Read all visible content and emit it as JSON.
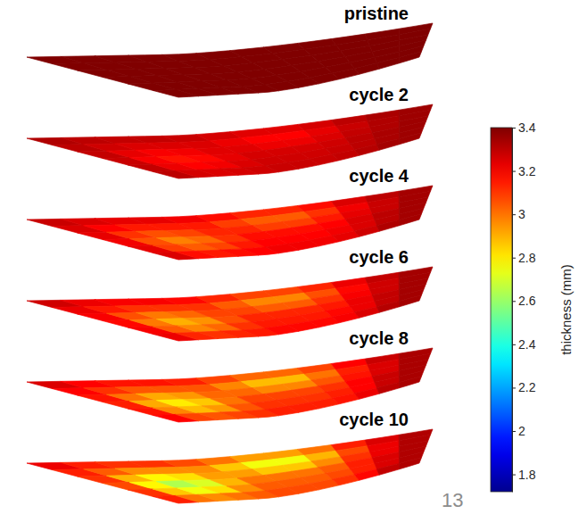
{
  "chart_data": {
    "type": "surface",
    "panels": [
      {
        "title": "pristine",
        "values": [
          [
            3.4,
            3.4,
            3.4,
            3.4,
            3.4,
            3.4,
            3.4,
            3.4,
            3.4,
            3.4,
            3.4,
            3.4
          ],
          [
            3.4,
            3.4,
            3.4,
            3.4,
            3.4,
            3.4,
            3.4,
            3.4,
            3.4,
            3.4,
            3.4,
            3.4
          ],
          [
            3.4,
            3.4,
            3.4,
            3.4,
            3.4,
            3.4,
            3.4,
            3.4,
            3.4,
            3.4,
            3.4,
            3.4
          ],
          [
            3.4,
            3.4,
            3.4,
            3.4,
            3.4,
            3.4,
            3.4,
            3.4,
            3.4,
            3.4,
            3.4,
            3.4
          ],
          [
            3.4,
            3.4,
            3.4,
            3.4,
            3.4,
            3.4,
            3.4,
            3.4,
            3.4,
            3.4,
            3.4,
            3.4
          ],
          [
            3.4,
            3.4,
            3.4,
            3.4,
            3.4,
            3.4,
            3.4,
            3.4,
            3.4,
            3.4,
            3.4,
            3.4
          ]
        ]
      },
      {
        "title": "cycle 2",
        "values": [
          [
            3.32,
            3.3,
            3.29,
            3.29,
            3.28,
            3.26,
            3.24,
            3.24,
            3.26,
            3.3,
            3.33,
            3.35
          ],
          [
            3.3,
            3.27,
            3.25,
            3.25,
            3.25,
            3.22,
            3.19,
            3.19,
            3.23,
            3.28,
            3.32,
            3.35
          ],
          [
            3.29,
            3.23,
            3.2,
            3.21,
            3.24,
            3.24,
            3.22,
            3.22,
            3.25,
            3.29,
            3.32,
            3.35
          ],
          [
            3.28,
            3.2,
            3.16,
            3.18,
            3.23,
            3.26,
            3.26,
            3.26,
            3.27,
            3.3,
            3.33,
            3.35
          ],
          [
            3.29,
            3.22,
            3.19,
            3.21,
            3.25,
            3.27,
            3.27,
            3.27,
            3.28,
            3.3,
            3.33,
            3.35
          ],
          [
            3.3,
            3.26,
            3.25,
            3.26,
            3.27,
            3.28,
            3.28,
            3.28,
            3.29,
            3.31,
            3.34,
            3.35
          ]
        ]
      },
      {
        "title": "cycle 4",
        "values": [
          [
            3.28,
            3.25,
            3.23,
            3.23,
            3.21,
            3.17,
            3.13,
            3.13,
            3.17,
            3.25,
            3.3,
            3.34
          ],
          [
            3.25,
            3.19,
            3.15,
            3.15,
            3.15,
            3.09,
            3.04,
            3.04,
            3.11,
            3.21,
            3.28,
            3.34
          ],
          [
            3.23,
            3.11,
            3.06,
            3.08,
            3.13,
            3.13,
            3.09,
            3.09,
            3.15,
            3.23,
            3.28,
            3.34
          ],
          [
            3.21,
            3.06,
            2.98,
            3.02,
            3.11,
            3.17,
            3.17,
            3.17,
            3.19,
            3.25,
            3.3,
            3.34
          ],
          [
            3.23,
            3.09,
            3.04,
            3.08,
            3.15,
            3.19,
            3.19,
            3.19,
            3.21,
            3.25,
            3.3,
            3.34
          ],
          [
            3.25,
            3.17,
            3.15,
            3.17,
            3.19,
            3.21,
            3.21,
            3.21,
            3.23,
            3.27,
            3.32,
            3.34
          ]
        ]
      },
      {
        "title": "cycle 6",
        "values": [
          [
            3.27,
            3.22,
            3.2,
            3.2,
            3.18,
            3.13,
            3.08,
            3.08,
            3.13,
            3.22,
            3.29,
            3.34
          ],
          [
            3.22,
            3.15,
            3.11,
            3.11,
            3.11,
            3.04,
            2.97,
            2.97,
            3.06,
            3.18,
            3.27,
            3.34
          ],
          [
            3.2,
            3.06,
            2.99,
            3.02,
            3.08,
            3.08,
            3.04,
            3.04,
            3.11,
            3.2,
            3.27,
            3.34
          ],
          [
            3.18,
            2.99,
            2.9,
            2.95,
            3.06,
            3.13,
            3.13,
            3.13,
            3.15,
            3.22,
            3.29,
            3.34
          ],
          [
            3.2,
            3.04,
            2.97,
            3.02,
            3.11,
            3.15,
            3.15,
            3.15,
            3.18,
            3.22,
            3.29,
            3.34
          ],
          [
            3.22,
            3.13,
            3.11,
            3.13,
            3.15,
            3.18,
            3.18,
            3.18,
            3.2,
            3.25,
            3.31,
            3.34
          ]
        ]
      },
      {
        "title": "cycle 8",
        "values": [
          [
            3.25,
            3.19,
            3.16,
            3.16,
            3.14,
            3.08,
            3.02,
            3.02,
            3.08,
            3.19,
            3.28,
            3.33
          ],
          [
            3.19,
            3.11,
            3.05,
            3.05,
            3.05,
            2.97,
            2.88,
            2.88,
            3.0,
            3.14,
            3.25,
            3.33
          ],
          [
            3.16,
            3.0,
            2.91,
            2.94,
            3.02,
            3.02,
            2.97,
            2.97,
            3.05,
            3.16,
            3.25,
            3.33
          ],
          [
            3.14,
            2.91,
            2.8,
            2.86,
            3.0,
            3.08,
            3.08,
            3.08,
            3.11,
            3.19,
            3.28,
            3.33
          ],
          [
            3.16,
            2.97,
            2.88,
            2.94,
            3.05,
            3.11,
            3.11,
            3.11,
            3.14,
            3.19,
            3.28,
            3.33
          ],
          [
            3.19,
            3.08,
            3.05,
            3.08,
            3.11,
            3.14,
            3.14,
            3.14,
            3.16,
            3.22,
            3.3,
            3.33
          ]
        ]
      },
      {
        "title": "cycle 10",
        "values": [
          [
            3.22,
            3.14,
            3.11,
            3.11,
            3.07,
            3.0,
            2.93,
            2.93,
            3.0,
            3.14,
            3.25,
            3.32
          ],
          [
            3.14,
            3.04,
            2.96,
            2.96,
            2.96,
            2.86,
            2.75,
            2.75,
            2.89,
            3.07,
            3.22,
            3.32
          ],
          [
            3.11,
            2.89,
            2.78,
            2.82,
            2.93,
            2.93,
            2.86,
            2.86,
            2.96,
            3.11,
            3.22,
            3.32
          ],
          [
            3.07,
            2.78,
            2.64,
            2.71,
            2.89,
            3.0,
            3.0,
            3.0,
            3.04,
            3.14,
            3.25,
            3.32
          ],
          [
            3.11,
            2.86,
            2.75,
            2.82,
            2.96,
            3.04,
            3.04,
            3.04,
            3.07,
            3.14,
            3.25,
            3.32
          ],
          [
            3.14,
            3.0,
            2.96,
            3.0,
            3.04,
            3.07,
            3.07,
            3.07,
            3.11,
            3.18,
            3.29,
            3.32
          ]
        ]
      }
    ],
    "colorbar": {
      "title": "thickness (mm)",
      "range": [
        1.72,
        3.4
      ],
      "ticks": [
        1.8,
        2,
        2.2,
        2.4,
        2.6,
        2.8,
        3,
        3.2,
        3.4
      ]
    },
    "annotations": [
      "13"
    ]
  }
}
